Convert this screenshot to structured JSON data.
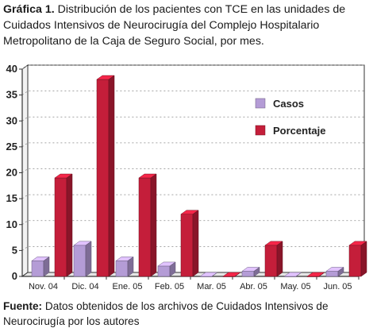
{
  "caption": {
    "label": "Gráfica 1.",
    "text": " Distribución de los pacientes con TCE en las unidades de Cuidados Intensivos de Neurocirugía del Complejo Hospitalario Metropolitano de la Caja de Seguro Social, por mes."
  },
  "source": {
    "label": "Fuente:",
    "text": " Datos obtenidos de los archivos de Cuidados Intensivos de Neurocirugía por los autores"
  },
  "chart_data": {
    "type": "bar",
    "title": "",
    "xlabel": "",
    "ylabel": "",
    "categories": [
      "Nov. 04",
      "Dic. 04",
      "Ene. 05",
      "Feb. 05",
      "Mar. 05",
      "Abr. 05",
      "May. 05",
      "Jun. 05"
    ],
    "series": [
      {
        "name": "Casos",
        "values": [
          3,
          6,
          3,
          2,
          0,
          1,
          0,
          1
        ],
        "color": "#b49cd6"
      },
      {
        "name": "Porcentaje",
        "values": [
          19,
          38,
          19,
          12,
          0,
          6,
          0,
          6
        ],
        "color": "#c41e3a"
      }
    ],
    "ylim": [
      0,
      40
    ],
    "yticks": [
      "0",
      "5",
      "10",
      "15",
      "20",
      "25",
      "30",
      "35",
      "40"
    ],
    "grid": true,
    "legend": "right",
    "style": "3d"
  }
}
